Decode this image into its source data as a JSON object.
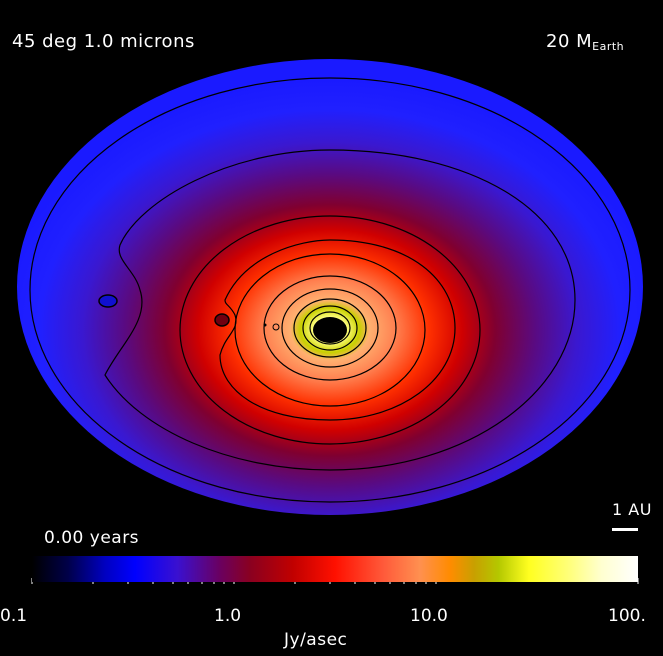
{
  "header": {
    "inclination_wavelength": "45 deg  1.0 microns",
    "planet_mass_value": "20 M",
    "planet_mass_unit": "Earth"
  },
  "scale_bar_label": "1 AU",
  "time_label": "0.00 years",
  "colorbar": {
    "tick_labels": [
      "0.1",
      "1.0",
      "10.0",
      "100."
    ],
    "unit_label": "Jy/asec",
    "scale": "log",
    "range": [
      0.1,
      100
    ]
  },
  "colors": {
    "background": "#000000",
    "outer_disk": "#1a1aff",
    "mid_disk": "#6a004a",
    "inner_red": "#ff1a00",
    "core_yellow": "#ffff60"
  }
}
